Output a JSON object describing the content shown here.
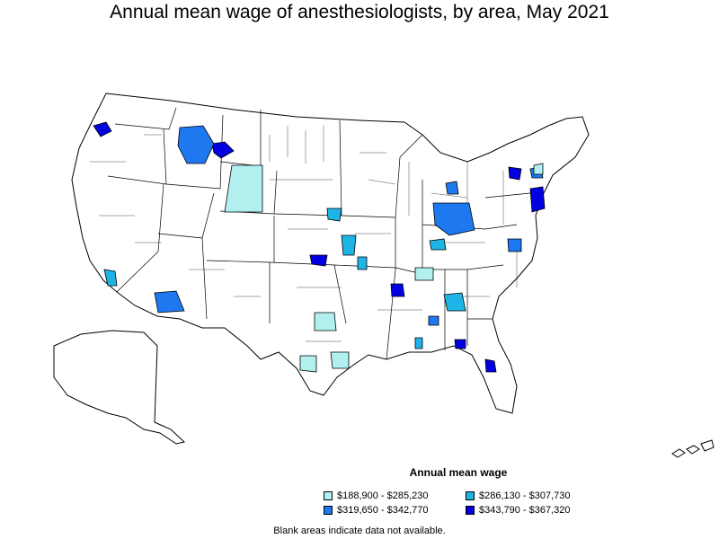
{
  "title": "Annual mean wage of anesthesiologists, by area, May 2021",
  "legend": {
    "title": "Annual mean wage",
    "items": [
      {
        "label": "$188,900 - $285,230",
        "color": "#b2f0f0"
      },
      {
        "label": "$286,130 - $307,730",
        "color": "#1eb4e6"
      },
      {
        "label": "$319,650 - $342,770",
        "color": "#1e78f0"
      },
      {
        "label": "$343,790 - $367,320",
        "color": "#0000e0"
      }
    ]
  },
  "footnote": "Blank areas indicate data not available.",
  "colors": {
    "tier1": "#b2f0f0",
    "tier2": "#1eb4e6",
    "tier3": "#1e78f0",
    "tier4": "#0000e0",
    "background": "#ffffff",
    "border": "#000000"
  }
}
